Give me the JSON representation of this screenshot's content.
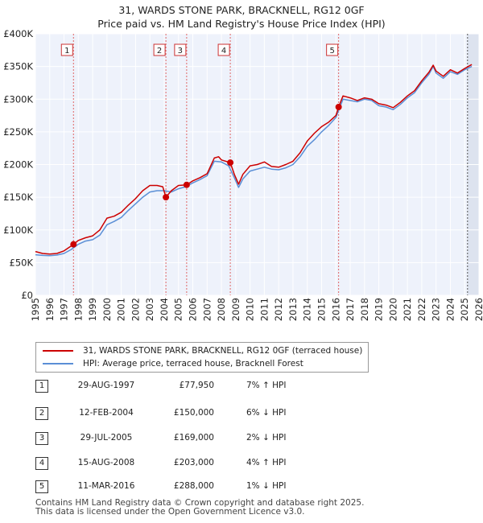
{
  "chart_data": {
    "type": "line",
    "title": "31, WARDS STONE PARK, BRACKNELL, RG12 0GF",
    "subtitle": "Price paid vs. HM Land Registry's House Price Index (HPI)",
    "xlim": [
      1995,
      2026
    ],
    "ylim": [
      0,
      400000
    ],
    "y_ticks": [
      0,
      50000,
      100000,
      150000,
      200000,
      250000,
      300000,
      350000,
      400000
    ],
    "y_tick_labels": [
      "£0",
      "£50K",
      "£100K",
      "£150K",
      "£200K",
      "£250K",
      "£300K",
      "£350K",
      "£400K"
    ],
    "x_ticks": [
      1995,
      1996,
      1997,
      1998,
      1999,
      2000,
      2001,
      2002,
      2003,
      2004,
      2005,
      2006,
      2007,
      2008,
      2009,
      2010,
      2011,
      2012,
      2013,
      2014,
      2015,
      2016,
      2017,
      2018,
      2019,
      2020,
      2021,
      2022,
      2023,
      2024,
      2025,
      2026
    ],
    "x_tick_labels": [
      "1995",
      "1996",
      "1997",
      "1998",
      "1999",
      "2000",
      "2001",
      "2002",
      "2003",
      "2004",
      "2005",
      "2006",
      "2007",
      "2008",
      "2009",
      "2010",
      "2011",
      "2012",
      "2013",
      "2014",
      "2015",
      "2016",
      "2017",
      "2018",
      "2019",
      "2020",
      "2021",
      "2022",
      "2023",
      "2024",
      "2025",
      "2026"
    ],
    "series": [
      {
        "name": "31, WARDS STONE PARK, BRACKNELL, RG12 0GF (terraced house)",
        "color": "#cc0000",
        "x": [
          1995.0,
          1995.5,
          1996.0,
          1996.5,
          1997.0,
          1997.66,
          1998.0,
          1998.5,
          1999.0,
          1999.5,
          2000.0,
          2000.5,
          2001.0,
          2001.5,
          2002.0,
          2002.5,
          2003.0,
          2003.5,
          2003.9,
          2004.12,
          2004.5,
          2005.0,
          2005.57,
          2006.0,
          2006.5,
          2007.0,
          2007.5,
          2007.8,
          2008.0,
          2008.62,
          2008.9,
          2009.2,
          2009.5,
          2010.0,
          2010.5,
          2011.0,
          2011.5,
          2012.0,
          2012.5,
          2013.0,
          2013.5,
          2014.0,
          2014.5,
          2015.0,
          2015.5,
          2016.0,
          2016.19,
          2016.5,
          2017.0,
          2017.5,
          2018.0,
          2018.5,
          2019.0,
          2019.5,
          2020.0,
          2020.5,
          2021.0,
          2021.5,
          2022.0,
          2022.5,
          2022.8,
          2023.0,
          2023.5,
          2024.0,
          2024.5,
          2025.0,
          2025.5
        ],
        "values": [
          67000,
          64000,
          63000,
          64000,
          68000,
          77950,
          84000,
          88000,
          91000,
          100000,
          118000,
          121000,
          127000,
          138000,
          148000,
          160000,
          168000,
          168000,
          166000,
          150000,
          160000,
          168000,
          169000,
          175000,
          180000,
          186000,
          210000,
          212000,
          207000,
          203000,
          185000,
          170000,
          185000,
          198000,
          200000,
          204000,
          197000,
          196000,
          200000,
          205000,
          218000,
          236000,
          248000,
          258000,
          265000,
          275000,
          288000,
          305000,
          302000,
          298000,
          302000,
          300000,
          293000,
          291000,
          287000,
          295000,
          305000,
          313000,
          328000,
          341000,
          352000,
          343000,
          335000,
          345000,
          340000,
          347000,
          353000
        ]
      },
      {
        "name": "HPI: Average price, terraced house, Bracknell Forest",
        "color": "#5b8fd6",
        "x": [
          1995.0,
          1995.5,
          1996.0,
          1996.5,
          1997.0,
          1997.5,
          1998.0,
          1998.5,
          1999.0,
          1999.5,
          2000.0,
          2000.5,
          2001.0,
          2001.5,
          2002.0,
          2002.5,
          2003.0,
          2003.5,
          2004.0,
          2004.5,
          2005.0,
          2005.5,
          2006.0,
          2006.5,
          2007.0,
          2007.5,
          2008.0,
          2008.5,
          2008.9,
          2009.2,
          2009.5,
          2010.0,
          2010.5,
          2011.0,
          2011.5,
          2012.0,
          2012.5,
          2013.0,
          2013.5,
          2014.0,
          2014.5,
          2015.0,
          2015.5,
          2016.0,
          2016.5,
          2017.0,
          2017.5,
          2018.0,
          2018.5,
          2019.0,
          2019.5,
          2020.0,
          2020.5,
          2021.0,
          2021.5,
          2022.0,
          2022.5,
          2022.8,
          2023.0,
          2023.5,
          2024.0,
          2024.5,
          2025.0,
          2025.5
        ],
        "values": [
          62000,
          61000,
          60500,
          61500,
          64000,
          70000,
          78000,
          83000,
          85000,
          92000,
          108000,
          113000,
          119000,
          130000,
          140000,
          150000,
          158000,
          160000,
          160000,
          158000,
          163000,
          166000,
          172000,
          177000,
          183000,
          205000,
          204000,
          198000,
          180000,
          165000,
          178000,
          190000,
          193000,
          196000,
          193000,
          192000,
          195000,
          200000,
          212000,
          228000,
          238000,
          250000,
          260000,
          272000,
          300000,
          298000,
          296000,
          300000,
          298000,
          290000,
          288000,
          284000,
          292000,
          302000,
          310000,
          325000,
          338000,
          350000,
          340000,
          332000,
          342000,
          338000,
          345000,
          350000
        ]
      }
    ],
    "sales": [
      {
        "n": "1",
        "x": 1997.66,
        "y": 77950
      },
      {
        "n": "2",
        "x": 2004.12,
        "y": 150000
      },
      {
        "n": "3",
        "x": 2005.57,
        "y": 169000
      },
      {
        "n": "4",
        "x": 2008.62,
        "y": 203000
      },
      {
        "n": "5",
        "x": 2016.19,
        "y": 288000
      }
    ],
    "shaded_start": 2025.2
  },
  "legend": {
    "property_label": "31, WARDS STONE PARK, BRACKNELL, RG12 0GF (terraced house)",
    "hpi_label": "HPI: Average price, terraced house, Bracknell Forest"
  },
  "table": {
    "rows": [
      {
        "n": "1",
        "date": "29-AUG-1997",
        "price": "£77,950",
        "hpi": "7% ↑ HPI"
      },
      {
        "n": "2",
        "date": "12-FEB-2004",
        "price": "£150,000",
        "hpi": "6% ↓ HPI"
      },
      {
        "n": "3",
        "date": "29-JUL-2005",
        "price": "£169,000",
        "hpi": "2% ↓ HPI"
      },
      {
        "n": "4",
        "date": "15-AUG-2008",
        "price": "£203,000",
        "hpi": "4% ↑ HPI"
      },
      {
        "n": "5",
        "date": "11-MAR-2016",
        "price": "£288,000",
        "hpi": "1% ↓ HPI"
      }
    ]
  },
  "footer": {
    "line1": "Contains HM Land Registry data © Crown copyright and database right 2025.",
    "line2": "This data is licensed under the Open Government Licence v3.0."
  }
}
